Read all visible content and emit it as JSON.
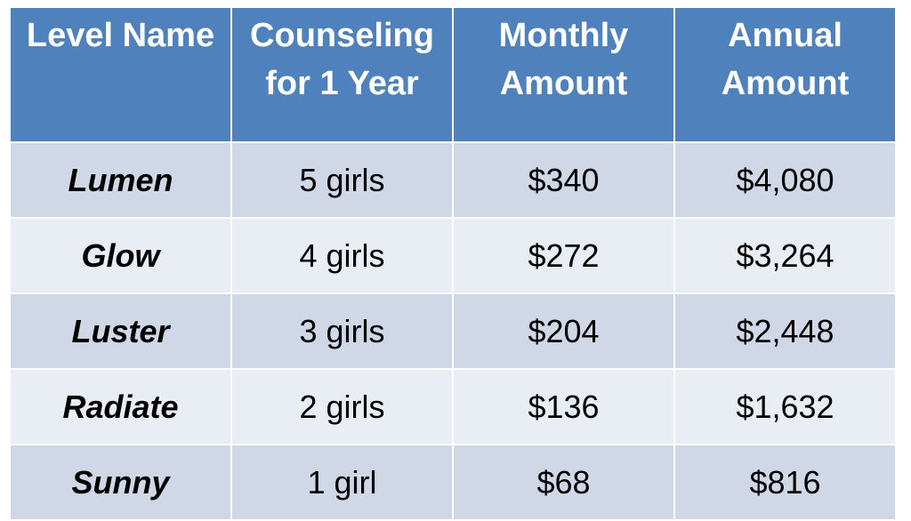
{
  "table": {
    "headers": [
      {
        "line1": "Level Name",
        "line2": ""
      },
      {
        "line1": "Counseling",
        "line2": "for 1 Year"
      },
      {
        "line1": "Monthly",
        "line2": "Amount"
      },
      {
        "line1": "Annual",
        "line2": "Amount"
      }
    ],
    "rows": [
      {
        "level": "Lumen",
        "counseling": "5 girls",
        "monthly": "$340",
        "annual": "$4,080"
      },
      {
        "level": "Glow",
        "counseling": "4 girls",
        "monthly": "$272",
        "annual": "$3,264"
      },
      {
        "level": "Luster",
        "counseling": "3 girls",
        "monthly": "$204",
        "annual": "$2,448"
      },
      {
        "level": "Radiate",
        "counseling": "2 girls",
        "monthly": "$136",
        "annual": "$1,632"
      },
      {
        "level": "Sunny",
        "counseling": "1 girl",
        "monthly": "$68",
        "annual": "$816"
      }
    ],
    "colors": {
      "header_bg": "#4f81bd",
      "row_dark": "#d0d8e8",
      "row_light": "#e9edf4"
    }
  }
}
